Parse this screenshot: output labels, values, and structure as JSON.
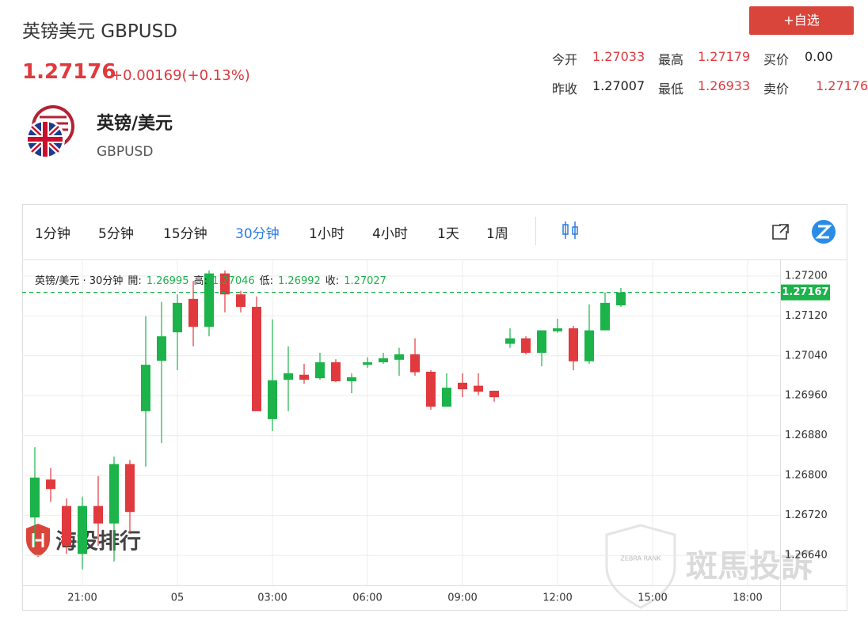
{
  "header": {
    "title": "英镑美元 GBPUSD",
    "price": "1.27176",
    "change": "+0.00169(+0.13%)",
    "button": "+自选",
    "stats": [
      [
        {
          "label": "今开",
          "value": "1.27033",
          "color": "#e0393e"
        },
        {
          "label": "最高",
          "value": "1.27179",
          "color": "#e0393e"
        },
        {
          "label": "买价",
          "value": "0.00",
          "color": "#222222"
        }
      ],
      [
        {
          "label": "昨收",
          "value": "1.27007",
          "color": "#222222"
        },
        {
          "label": "最低",
          "value": "1.26933",
          "color": "#e0393e"
        },
        {
          "label": "卖价",
          "value": "1.27176",
          "color": "#e0393e"
        }
      ]
    ]
  },
  "symbol": {
    "name": "英镑/美元",
    "code": "GBPUSD"
  },
  "tabs": [
    "1分钟",
    "5分钟",
    "15分钟",
    "30分钟",
    "1小时",
    "4小时",
    "1天",
    "1周"
  ],
  "active_tab": 3,
  "watermarks": [
    "海投排行",
    "斑馬投訴",
    "ZEBRA RANK"
  ],
  "chart_data": {
    "type": "candlestick",
    "legend_title": "英镑/美元 · 30分钟",
    "info": [
      {
        "label": "開:",
        "value": 1.26995
      },
      {
        "label": "高:",
        "value": 1.27046
      },
      {
        "label": "低:",
        "value": 1.26992
      },
      {
        "label": "收:",
        "value": 1.27027
      }
    ],
    "x": [
      0,
      1,
      2,
      3,
      4,
      5,
      6,
      7,
      8,
      9,
      10,
      11,
      12,
      13,
      14,
      15,
      16,
      17,
      18,
      19,
      20,
      21,
      22,
      23,
      24,
      25,
      26,
      27,
      28,
      29,
      30,
      31,
      32,
      33,
      34,
      35,
      36,
      37
    ],
    "open": [
      1.26716,
      1.26792,
      1.26739,
      1.26643,
      1.26739,
      1.26704,
      1.26823,
      1.26929,
      1.2703,
      1.27087,
      1.27154,
      1.27098,
      1.27205,
      1.27163,
      1.27138,
      1.26913,
      1.26992,
      1.27002,
      1.26995,
      1.27027,
      1.26989,
      1.27022,
      1.27027,
      1.27032,
      1.27043,
      1.27008,
      1.26938,
      1.26986,
      1.2698,
      1.2697,
      1.27064,
      1.27075,
      1.27046,
      1.27089,
      1.27095,
      1.27029,
      1.27091,
      1.27141
    ],
    "high": [
      1.26857,
      1.26815,
      1.26754,
      1.26758,
      1.26799,
      1.26838,
      1.26831,
      1.27119,
      1.27148,
      1.27163,
      1.2719,
      1.27211,
      1.27211,
      1.2717,
      1.27159,
      1.27113,
      1.27059,
      1.27024,
      1.27046,
      1.27033,
      1.27005,
      1.27037,
      1.27046,
      1.27056,
      1.27075,
      1.27011,
      1.27005,
      1.27005,
      1.27005,
      1.2697,
      1.27095,
      1.27079,
      1.27091,
      1.27114,
      1.271,
      1.27143,
      1.27167,
      1.27176
    ],
    "low": [
      1.26659,
      1.26747,
      1.26643,
      1.26612,
      1.26659,
      1.26628,
      1.26683,
      1.26818,
      1.26865,
      1.27011,
      1.27059,
      1.27079,
      1.27127,
      1.27127,
      1.26929,
      1.26889,
      1.26929,
      1.26984,
      1.26992,
      1.26987,
      1.26965,
      1.27016,
      1.27024,
      1.27,
      1.27,
      1.26932,
      1.26938,
      1.26957,
      1.26961,
      1.26948,
      1.27056,
      1.27043,
      1.27019,
      1.27086,
      1.27011,
      1.27024,
      1.27091,
      1.27138
    ],
    "close": [
      1.26796,
      1.26773,
      1.26659,
      1.26739,
      1.26704,
      1.26823,
      1.26727,
      1.27022,
      1.27079,
      1.27146,
      1.27098,
      1.27205,
      1.27163,
      1.27138,
      1.26929,
      1.26991,
      1.27005,
      1.26992,
      1.27027,
      1.26989,
      1.26997,
      1.27027,
      1.27035,
      1.27043,
      1.27007,
      1.26938,
      1.26976,
      1.26973,
      1.26968,
      1.26957,
      1.27075,
      1.27046,
      1.27091,
      1.27095,
      1.27029,
      1.27091,
      1.27146,
      1.27167
    ],
    "up_color": "#1bb34a",
    "down_color": "#e0393e",
    "last_price": 1.27167,
    "last_price_color": "#1bb34a",
    "xlim": [
      -0.8,
      47.05
    ],
    "xticks": [
      {
        "value": 3,
        "label": "21:00"
      },
      {
        "value": 9,
        "label": "05"
      },
      {
        "value": 15,
        "label": "03:00"
      },
      {
        "value": 21,
        "label": "06:00"
      },
      {
        "value": 27,
        "label": "09:00"
      },
      {
        "value": 33,
        "label": "12:00"
      },
      {
        "value": 39,
        "label": "15:00"
      },
      {
        "value": 45,
        "label": "18:00"
      }
    ],
    "ylim": [
      1.2658,
      1.27233
    ],
    "yticks": [
      {
        "value": 1.2664,
        "label": "1.26640"
      },
      {
        "value": 1.2672,
        "label": "1.26720"
      },
      {
        "value": 1.268,
        "label": "1.26800"
      },
      {
        "value": 1.2688,
        "label": "1.26880"
      },
      {
        "value": 1.2696,
        "label": "1.26960"
      },
      {
        "value": 1.2704,
        "label": "1.27040"
      },
      {
        "value": 1.2712,
        "label": "1.27120"
      },
      {
        "value": 1.272,
        "label": "1.27200"
      }
    ],
    "grid": true
  }
}
